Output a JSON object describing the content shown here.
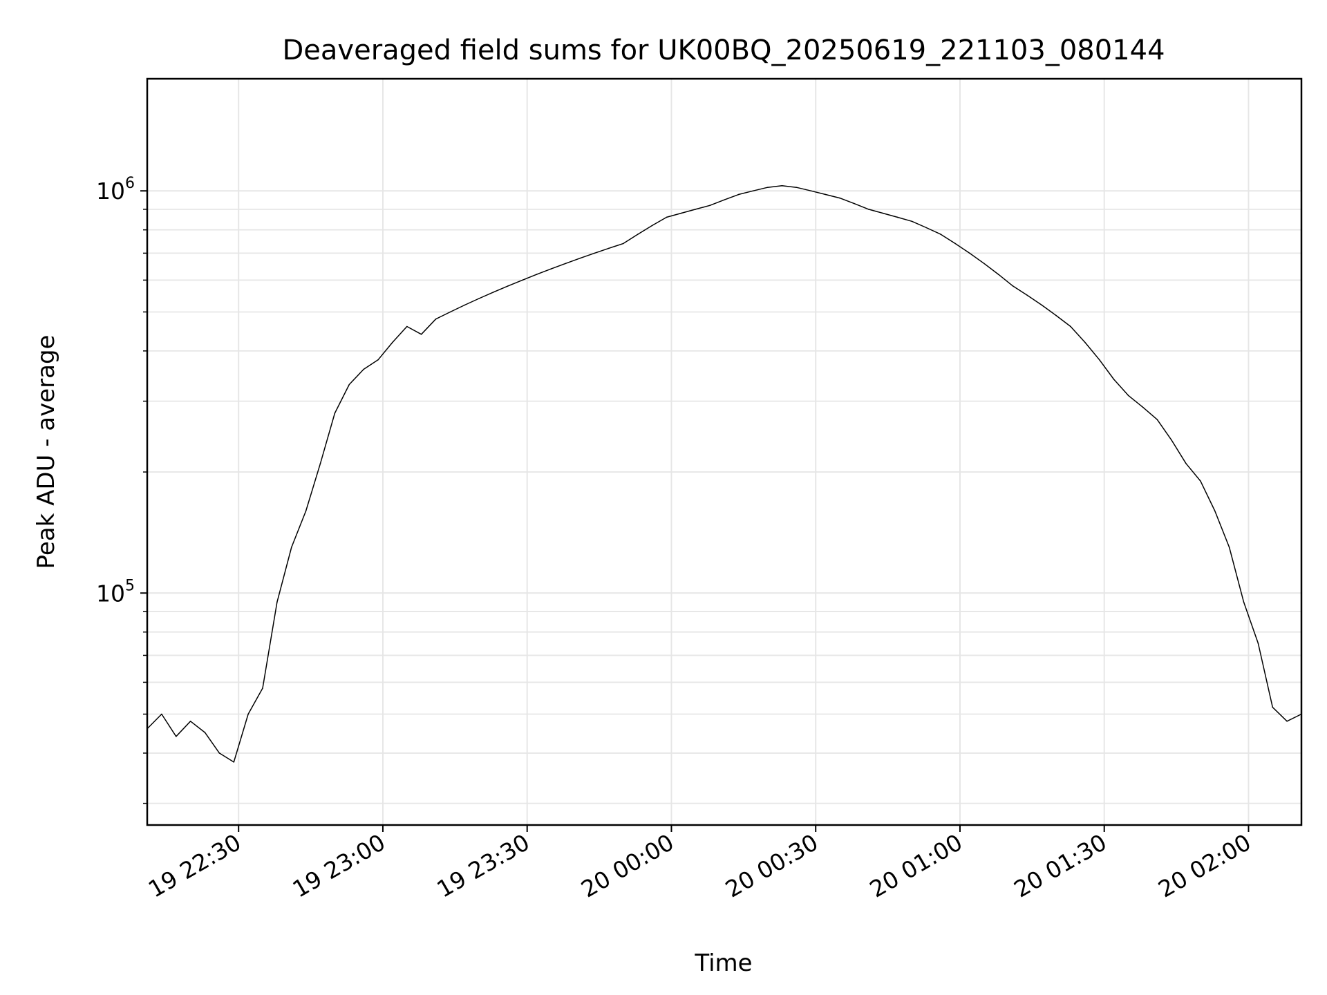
{
  "chart_data": {
    "type": "line",
    "title": "Deaveraged field sums for UK00BQ_20250619_221103_080144",
    "xlabel": "Time",
    "ylabel": "Peak ADU - average",
    "yscale": "log",
    "ylim": [
      26500,
      1900000
    ],
    "xlim": [
      "2025-06-19 22:11",
      "2025-06-20 02:11"
    ],
    "grid": true,
    "line_color": "#000000",
    "x_ticks": [
      {
        "value": "2025-06-19 22:30",
        "label": "19 22:30"
      },
      {
        "value": "2025-06-19 23:00",
        "label": "19 23:00"
      },
      {
        "value": "2025-06-19 23:30",
        "label": "19 23:30"
      },
      {
        "value": "2025-06-20 00:00",
        "label": "20 00:00"
      },
      {
        "value": "2025-06-20 00:30",
        "label": "20 00:30"
      },
      {
        "value": "2025-06-20 01:00",
        "label": "20 01:00"
      },
      {
        "value": "2025-06-20 01:30",
        "label": "20 01:30"
      },
      {
        "value": "2025-06-20 02:00",
        "label": "20 02:00"
      }
    ],
    "y_ticks": [
      {
        "value": 100000,
        "base": "10",
        "exp": "5"
      },
      {
        "value": 1000000,
        "base": "10",
        "exp": "6"
      }
    ],
    "series": [
      {
        "x": [
          "2025-06-19 22:11",
          "2025-06-19 22:14",
          "2025-06-19 22:17",
          "2025-06-19 22:20",
          "2025-06-19 22:23",
          "2025-06-19 22:26",
          "2025-06-19 22:29",
          "2025-06-19 22:32",
          "2025-06-19 22:35",
          "2025-06-19 22:38",
          "2025-06-19 22:41",
          "2025-06-19 22:44",
          "2025-06-19 22:47",
          "2025-06-19 22:50",
          "2025-06-19 22:53",
          "2025-06-19 22:56",
          "2025-06-19 22:59",
          "2025-06-19 23:02",
          "2025-06-19 23:05",
          "2025-06-19 23:08",
          "2025-06-19 23:11",
          "2025-06-19 23:14",
          "2025-06-19 23:17",
          "2025-06-19 23:20",
          "2025-06-19 23:23",
          "2025-06-19 23:26",
          "2025-06-19 23:29",
          "2025-06-19 23:32",
          "2025-06-19 23:35",
          "2025-06-19 23:38",
          "2025-06-19 23:41",
          "2025-06-19 23:44",
          "2025-06-19 23:47",
          "2025-06-19 23:50",
          "2025-06-19 23:53",
          "2025-06-19 23:56",
          "2025-06-19 23:59",
          "2025-06-20 00:02",
          "2025-06-20 00:05",
          "2025-06-20 00:08",
          "2025-06-20 00:11",
          "2025-06-20 00:14",
          "2025-06-20 00:17",
          "2025-06-20 00:20",
          "2025-06-20 00:23",
          "2025-06-20 00:26",
          "2025-06-20 00:29",
          "2025-06-20 00:32",
          "2025-06-20 00:35",
          "2025-06-20 00:38",
          "2025-06-20 00:41",
          "2025-06-20 00:44",
          "2025-06-20 00:47",
          "2025-06-20 00:50",
          "2025-06-20 00:53",
          "2025-06-20 00:56",
          "2025-06-20 00:59",
          "2025-06-20 01:02",
          "2025-06-20 01:05",
          "2025-06-20 01:08",
          "2025-06-20 01:11",
          "2025-06-20 01:14",
          "2025-06-20 01:17",
          "2025-06-20 01:20",
          "2025-06-20 01:23",
          "2025-06-20 01:26",
          "2025-06-20 01:29",
          "2025-06-20 01:32",
          "2025-06-20 01:35",
          "2025-06-20 01:38",
          "2025-06-20 01:41",
          "2025-06-20 01:44",
          "2025-06-20 01:47",
          "2025-06-20 01:50",
          "2025-06-20 01:53",
          "2025-06-20 01:56",
          "2025-06-20 01:59",
          "2025-06-20 02:02",
          "2025-06-20 02:05",
          "2025-06-20 02:08",
          "2025-06-20 02:11"
        ],
        "y": [
          46000,
          50000,
          44000,
          48000,
          45000,
          40000,
          38000,
          50000,
          58000,
          95000,
          130000,
          160000,
          210000,
          280000,
          330000,
          360000,
          380000,
          420000,
          460000,
          440000,
          480000,
          500000,
          520000,
          540000,
          560000,
          580000,
          600000,
          620000,
          640000,
          660000,
          680000,
          700000,
          720000,
          740000,
          780000,
          820000,
          860000,
          880000,
          900000,
          920000,
          950000,
          980000,
          1000000,
          1020000,
          1030000,
          1020000,
          1000000,
          980000,
          960000,
          930000,
          900000,
          880000,
          860000,
          840000,
          810000,
          780000,
          740000,
          700000,
          660000,
          620000,
          580000,
          550000,
          520000,
          490000,
          460000,
          420000,
          380000,
          340000,
          310000,
          290000,
          270000,
          240000,
          210000,
          190000,
          160000,
          130000,
          95000,
          75000,
          52000,
          48000,
          50000
        ]
      }
    ]
  }
}
